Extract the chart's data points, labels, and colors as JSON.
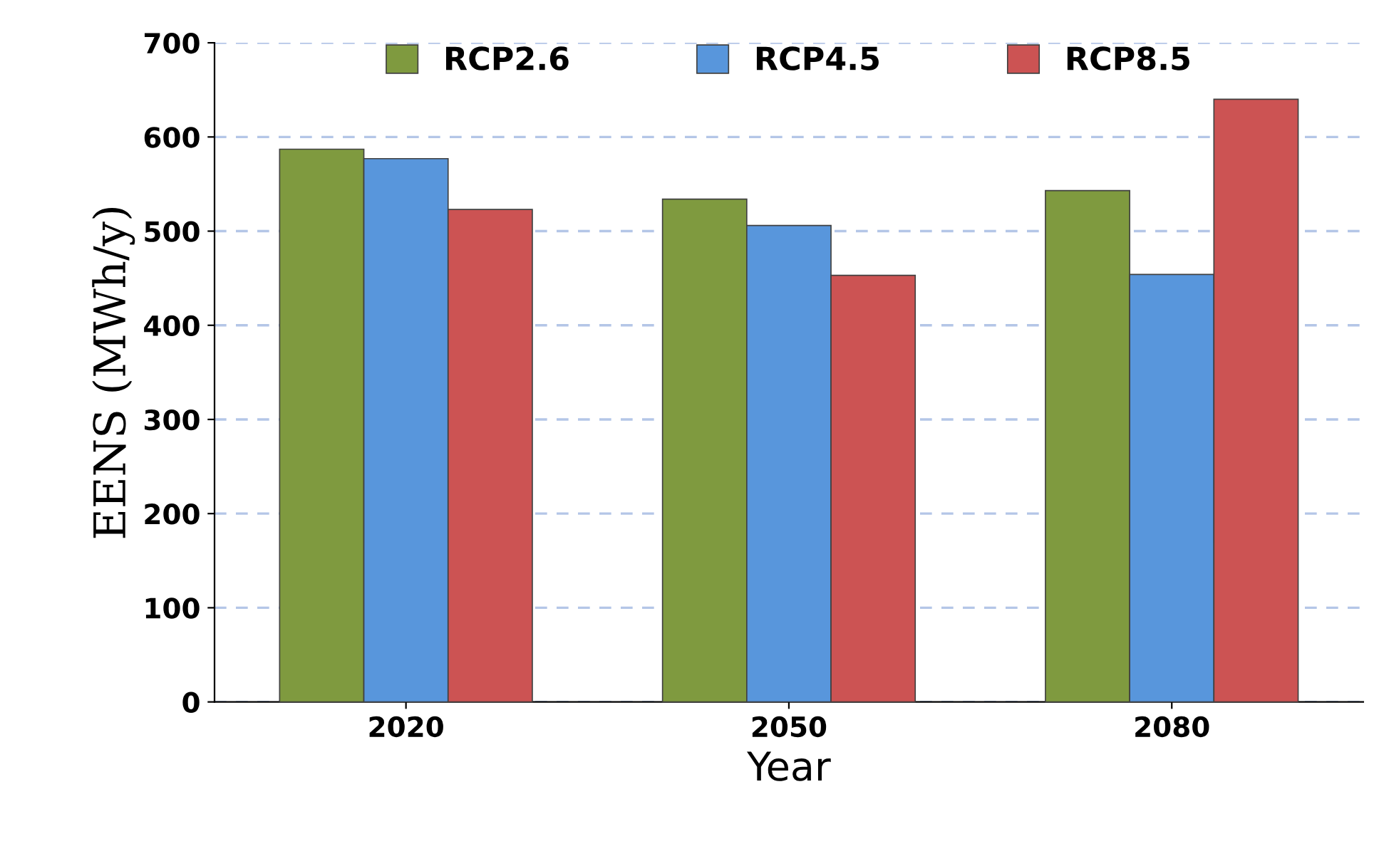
{
  "chart_data": {
    "type": "bar",
    "xlabel": "Year",
    "ylabel": "EENS (MWh/y)",
    "categories": [
      "2020",
      "2050",
      "2080"
    ],
    "series": [
      {
        "name": "RCP2.6",
        "color": "#7f9a3f",
        "values": [
          587,
          534,
          543
        ]
      },
      {
        "name": "RCP4.5",
        "color": "#5896dc",
        "values": [
          577,
          506,
          454
        ]
      },
      {
        "name": "RCP8.5",
        "color": "#cc5353",
        "values": [
          523,
          453,
          640
        ]
      }
    ],
    "ylim": [
      0,
      700
    ],
    "yticks": [
      0,
      100,
      200,
      300,
      400,
      500,
      600,
      700
    ],
    "grid": "y",
    "legend": "top"
  }
}
